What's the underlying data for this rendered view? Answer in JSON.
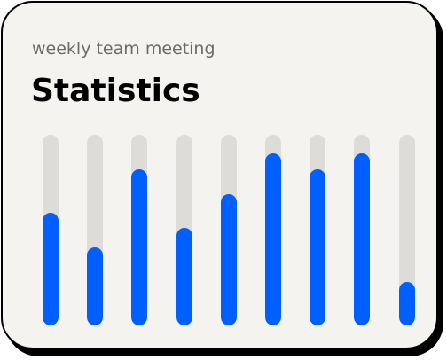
{
  "card": {
    "subtitle": "weekly team meeting",
    "title": "Statistics"
  },
  "colors": {
    "card_background": "#f4f3ef",
    "border": "#000000",
    "track": "#dddcd7",
    "fill": "#005ffe",
    "subtitle_text": "#6b6b6b",
    "title_text": "#000000"
  },
  "chart_data": {
    "type": "bar",
    "values": [
      0.59,
      0.41,
      0.82,
      0.51,
      0.69,
      0.9,
      0.82,
      0.9,
      0.23
    ],
    "ylim": [
      0,
      1
    ],
    "grid": false
  }
}
